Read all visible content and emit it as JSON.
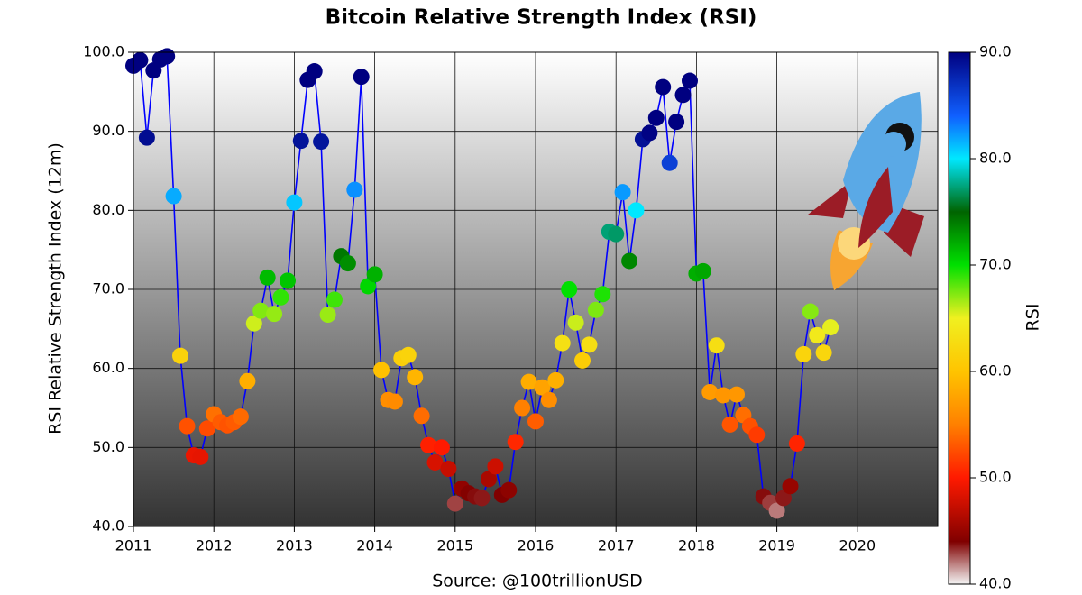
{
  "chart_data": {
    "type": "scatter",
    "title": "Bitcoin Relative Strength Index (RSI)",
    "ylabel": "RSI Relative Strength Index (12m)",
    "source": "Source: @100trillionUSD",
    "colorbar_label": "RSI",
    "xlim": [
      2011,
      2021
    ],
    "xticks": [
      2011,
      2012,
      2013,
      2014,
      2015,
      2016,
      2017,
      2018,
      2019,
      2020
    ],
    "ylim": [
      40,
      100
    ],
    "yticks": [
      {
        "value": 40,
        "label": "40.0"
      },
      {
        "value": 50,
        "label": "50.0"
      },
      {
        "value": 60,
        "label": "60.0"
      },
      {
        "value": 70,
        "label": "70.0"
      },
      {
        "value": 80,
        "label": "80.0"
      },
      {
        "value": 90,
        "label": "90.0"
      },
      {
        "value": 100,
        "label": "100.0"
      }
    ],
    "clim": [
      40,
      90
    ],
    "cticks": [
      {
        "value": 40,
        "label": "40.0"
      },
      {
        "value": 50,
        "label": "50.0"
      },
      {
        "value": 60,
        "label": "60.0"
      },
      {
        "value": 70,
        "label": "70.0"
      },
      {
        "value": 80,
        "label": "80.0"
      },
      {
        "value": 90,
        "label": "90.0"
      }
    ],
    "colormap": [
      {
        "value": 40,
        "color": "#f4f4f4"
      },
      {
        "value": 44,
        "color": "#800000"
      },
      {
        "value": 50,
        "color": "#ff1a00"
      },
      {
        "value": 55,
        "color": "#ff8000"
      },
      {
        "value": 60,
        "color": "#ffc400"
      },
      {
        "value": 65,
        "color": "#f0f020"
      },
      {
        "value": 70,
        "color": "#00e000"
      },
      {
        "value": 75,
        "color": "#006400"
      },
      {
        "value": 80,
        "color": "#00e8ff"
      },
      {
        "value": 84,
        "color": "#1060ff"
      },
      {
        "value": 90,
        "color": "#000080"
      }
    ],
    "line_color": "#0000ff",
    "grid": true,
    "x": [
      2011.0,
      2011.083,
      2011.167,
      2011.25,
      2011.333,
      2011.417,
      2011.5,
      2011.583,
      2011.667,
      2011.75,
      2011.833,
      2011.917,
      2012.0,
      2012.083,
      2012.167,
      2012.25,
      2012.333,
      2012.417,
      2012.5,
      2012.583,
      2012.667,
      2012.75,
      2012.833,
      2012.917,
      2013.0,
      2013.083,
      2013.167,
      2013.25,
      2013.333,
      2013.417,
      2013.5,
      2013.583,
      2013.667,
      2013.75,
      2013.833,
      2013.917,
      2014.0,
      2014.083,
      2014.167,
      2014.25,
      2014.333,
      2014.417,
      2014.5,
      2014.583,
      2014.667,
      2014.75,
      2014.833,
      2014.917,
      2015.0,
      2015.083,
      2015.167,
      2015.25,
      2015.333,
      2015.417,
      2015.5,
      2015.583,
      2015.667,
      2015.75,
      2015.833,
      2015.917,
      2016.0,
      2016.083,
      2016.167,
      2016.25,
      2016.333,
      2016.417,
      2016.5,
      2016.583,
      2016.667,
      2016.75,
      2016.833,
      2016.917,
      2017.0,
      2017.083,
      2017.167,
      2017.25,
      2017.333,
      2017.417,
      2017.5,
      2017.583,
      2017.667,
      2017.75,
      2017.833,
      2017.917,
      2018.0,
      2018.083,
      2018.167,
      2018.25,
      2018.333,
      2018.417,
      2018.5,
      2018.583,
      2018.667,
      2018.75,
      2018.833,
      2018.917,
      2019.0,
      2019.083,
      2019.167,
      2019.25,
      2019.333,
      2019.417,
      2019.5,
      2019.583,
      2019.667
    ],
    "values": [
      98.3,
      99.0,
      89.2,
      97.7,
      99.1,
      99.5,
      81.8,
      61.6,
      52.7,
      49.0,
      48.8,
      52.4,
      54.2,
      53.2,
      52.8,
      53.2,
      53.9,
      58.4,
      65.7,
      67.3,
      71.5,
      66.9,
      69.0,
      71.1,
      81.0,
      88.8,
      96.5,
      97.6,
      88.7,
      66.8,
      68.7,
      74.2,
      73.3,
      82.6,
      96.9,
      70.4,
      71.9,
      59.8,
      56.0,
      55.8,
      61.3,
      61.7,
      58.9,
      54.0,
      50.3,
      48.1,
      50.0,
      47.3,
      42.9,
      44.8,
      44.2,
      43.8,
      43.6,
      46.0,
      47.6,
      44.0,
      44.6,
      50.7,
      55.0,
      58.3,
      53.3,
      57.6,
      56.0,
      58.5,
      63.2,
      70.0,
      65.8,
      61.0,
      63.0,
      67.4,
      69.4,
      77.3,
      77.0,
      82.3,
      73.6,
      80.0,
      89.0,
      89.8,
      91.7,
      95.6,
      86.0,
      91.2,
      94.6,
      96.4,
      72.0,
      72.3,
      57.0,
      62.9,
      56.6,
      52.9,
      56.7,
      54.1,
      52.7,
      51.6,
      43.8,
      43.0,
      42.0,
      43.6,
      45.1,
      50.5,
      61.8,
      67.2,
      64.2,
      62.0,
      65.2
    ]
  }
}
